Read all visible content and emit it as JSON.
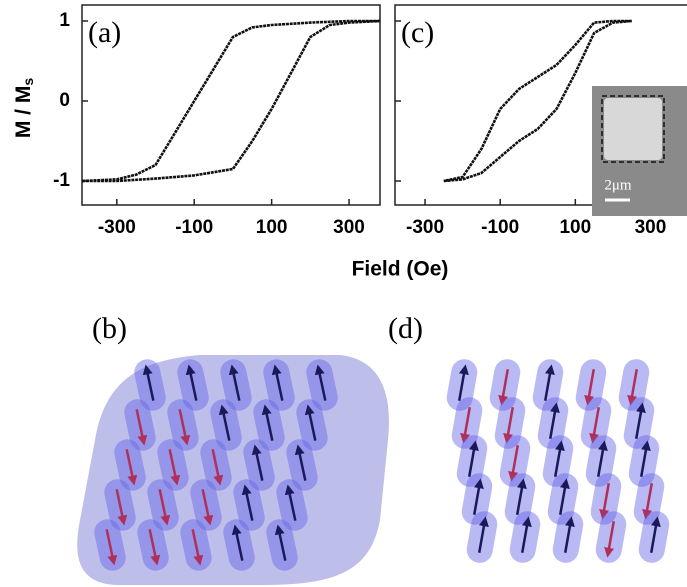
{
  "figure": {
    "x_label": "Field (Oe)",
    "y_label": "M / M",
    "y_label_subscript": "s"
  },
  "chart_data": [
    {
      "type": "line",
      "panel_label": "(a)",
      "xlim": [
        -390,
        380
      ],
      "ylim": [
        -1.3,
        1.2
      ],
      "xticks": [
        -300,
        -100,
        100,
        300
      ],
      "yticks": [
        -1,
        0,
        1
      ],
      "ytick_labels": true,
      "series": [
        {
          "color": "#111111",
          "x": [
            380,
            300,
            200,
            100,
            50,
            0,
            -50,
            -100,
            -150,
            -200,
            -250,
            -300,
            -390
          ],
          "values": [
            1,
            1,
            0.98,
            0.95,
            0.92,
            0.8,
            0.4,
            0.0,
            -0.4,
            -0.8,
            -0.92,
            -0.98,
            -1
          ]
        },
        {
          "color": "#111111",
          "x": [
            -390,
            -300,
            -200,
            -100,
            0,
            50,
            100,
            150,
            200,
            250,
            300,
            380
          ],
          "values": [
            -1,
            -1,
            -0.97,
            -0.93,
            -0.85,
            -0.5,
            -0.1,
            0.35,
            0.8,
            0.95,
            0.98,
            1
          ]
        }
      ]
    },
    {
      "type": "line",
      "panel_label": "(c)",
      "inset_label": "2μm",
      "xlim": [
        -380,
        400
      ],
      "ylim": [
        -1.3,
        1.2
      ],
      "xticks": [
        -300,
        -100,
        100,
        300
      ],
      "yticks": [
        -1,
        0,
        1
      ],
      "ytick_labels": false,
      "series": [
        {
          "color": "#111111",
          "x": [
            250,
            200,
            150,
            100,
            50,
            0,
            -50,
            -100,
            -150,
            -200,
            -250
          ],
          "values": [
            1,
            1,
            0.98,
            0.7,
            0.45,
            0.3,
            0.15,
            -0.1,
            -0.6,
            -0.95,
            -1
          ]
        },
        {
          "color": "#111111",
          "x": [
            -250,
            -200,
            -150,
            -100,
            -50,
            0,
            50,
            100,
            150,
            200,
            250
          ],
          "values": [
            -1,
            -0.98,
            -0.9,
            -0.7,
            -0.5,
            -0.35,
            -0.1,
            0.35,
            0.85,
            0.98,
            1
          ]
        }
      ]
    }
  ],
  "diagrams": [
    {
      "label": "(b)"
    },
    {
      "label": "(d)"
    }
  ]
}
